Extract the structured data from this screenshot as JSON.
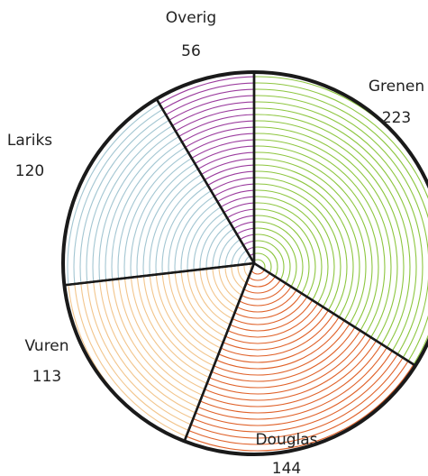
{
  "chart_data": {
    "type": "pie",
    "categories": [
      "Grenen",
      "Douglas",
      "Vuren",
      "Lariks",
      "Overig"
    ],
    "values": [
      223,
      144,
      113,
      120,
      56
    ],
    "colors": [
      "#8dc63f",
      "#e0622a",
      "#f2c58c",
      "#a3c6d2",
      "#9b3c9e"
    ]
  }
}
